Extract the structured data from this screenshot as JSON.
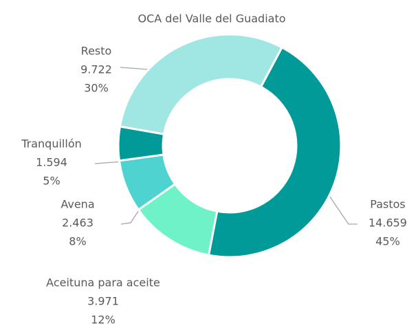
{
  "chart_data": {
    "type": "pie",
    "title": "OCA del Valle del Guadiato",
    "categories": [
      "Pastos",
      "Aceituna para aceite",
      "Avena",
      "Tranquillón",
      "Resto"
    ],
    "values": [
      14659,
      3971,
      2463,
      1594,
      9722
    ],
    "value_labels": [
      "14.659",
      "3.971",
      "2.463",
      "1.594",
      "9.722"
    ],
    "percent_labels": [
      "45%",
      "12%",
      "8%",
      "5%",
      "30%"
    ],
    "colors": [
      "#009b98",
      "#70f2c9",
      "#4fd3d1",
      "#009b98",
      "#a0e6e2"
    ],
    "donut": true
  }
}
